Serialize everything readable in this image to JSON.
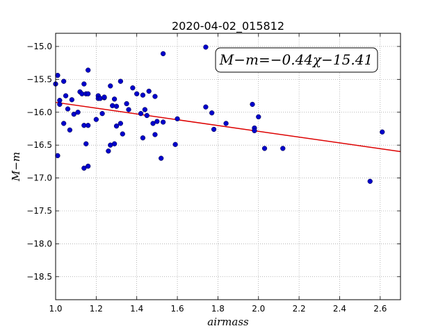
{
  "chart_data": {
    "type": "scatter",
    "title": "2020-04-02_015812",
    "xlabel": "airmass",
    "ylabel": "M−m",
    "xlim": [
      1.0,
      2.7
    ],
    "ylim": [
      -18.85,
      -14.8
    ],
    "ylim_inverted": true,
    "grid": true,
    "xticks": [
      1.0,
      1.2,
      1.4,
      1.6,
      1.8,
      2.0,
      2.2,
      2.4,
      2.6
    ],
    "xtick_labels": [
      "1.0",
      "1.2",
      "1.4",
      "1.6",
      "1.8",
      "2.0",
      "2.2",
      "2.4",
      "2.6"
    ],
    "yticks": [
      -15.0,
      -15.5,
      -16.0,
      -16.5,
      -17.0,
      -17.5,
      -18.0,
      -18.5
    ],
    "ytick_labels": [
      "−15.0",
      "−15.5",
      "−16.0",
      "−16.5",
      "−17.0",
      "−17.5",
      "−18.0",
      "−18.5"
    ],
    "annotation": "M−m=−0.44χ−15.41",
    "colors": {
      "points": "#0000cc",
      "fit": "#dd0000",
      "grid": "#888888"
    },
    "fit": {
      "slope": -0.44,
      "intercept": -15.41
    },
    "points": [
      [
        1.0,
        -15.57
      ],
      [
        1.01,
        -15.44
      ],
      [
        1.01,
        -16.66
      ],
      [
        1.02,
        -15.82
      ],
      [
        1.02,
        -15.88
      ],
      [
        1.04,
        -15.53
      ],
      [
        1.04,
        -16.17
      ],
      [
        1.05,
        -15.75
      ],
      [
        1.06,
        -15.95
      ],
      [
        1.07,
        -16.27
      ],
      [
        1.08,
        -15.81
      ],
      [
        1.09,
        -16.03
      ],
      [
        1.11,
        -16.0
      ],
      [
        1.12,
        -15.69
      ],
      [
        1.13,
        -15.72
      ],
      [
        1.14,
        -15.57
      ],
      [
        1.14,
        -16.2
      ],
      [
        1.14,
        -16.85
      ],
      [
        1.15,
        -15.72
      ],
      [
        1.15,
        -16.48
      ],
      [
        1.16,
        -15.36
      ],
      [
        1.16,
        -16.82
      ],
      [
        1.16,
        -16.2
      ],
      [
        1.16,
        -15.72
      ],
      [
        1.2,
        -16.11
      ],
      [
        1.21,
        -15.75
      ],
      [
        1.21,
        -15.79
      ],
      [
        1.22,
        -15.79
      ],
      [
        1.23,
        -16.02
      ],
      [
        1.24,
        -15.78
      ],
      [
        1.24,
        -15.77
      ],
      [
        1.26,
        -16.59
      ],
      [
        1.27,
        -15.6
      ],
      [
        1.27,
        -16.5
      ],
      [
        1.28,
        -15.9
      ],
      [
        1.29,
        -16.48
      ],
      [
        1.29,
        -15.8
      ],
      [
        1.3,
        -16.21
      ],
      [
        1.3,
        -15.91
      ],
      [
        1.32,
        -15.53
      ],
      [
        1.32,
        -16.17
      ],
      [
        1.33,
        -16.33
      ],
      [
        1.35,
        -15.87
      ],
      [
        1.36,
        -15.96
      ],
      [
        1.38,
        -15.63
      ],
      [
        1.4,
        -15.72
      ],
      [
        1.42,
        -16.02
      ],
      [
        1.43,
        -15.74
      ],
      [
        1.43,
        -16.39
      ],
      [
        1.44,
        -15.96
      ],
      [
        1.45,
        -16.05
      ],
      [
        1.46,
        -15.68
      ],
      [
        1.48,
        -16.17
      ],
      [
        1.49,
        -15.76
      ],
      [
        1.49,
        -16.34
      ],
      [
        1.5,
        -16.14
      ],
      [
        1.52,
        -16.7
      ],
      [
        1.53,
        -16.15
      ],
      [
        1.53,
        -15.11
      ],
      [
        1.59,
        -16.49
      ],
      [
        1.6,
        -16.1
      ],
      [
        1.74,
        -15.92
      ],
      [
        1.74,
        -15.01
      ],
      [
        1.77,
        -16.01
      ],
      [
        1.78,
        -16.26
      ],
      [
        1.84,
        -16.17
      ],
      [
        1.97,
        -15.88
      ],
      [
        1.98,
        -16.24
      ],
      [
        1.98,
        -16.28
      ],
      [
        2.0,
        -16.07
      ],
      [
        2.03,
        -16.55
      ],
      [
        2.12,
        -16.55
      ],
      [
        2.55,
        -17.05
      ],
      [
        2.61,
        -16.3
      ]
    ]
  }
}
